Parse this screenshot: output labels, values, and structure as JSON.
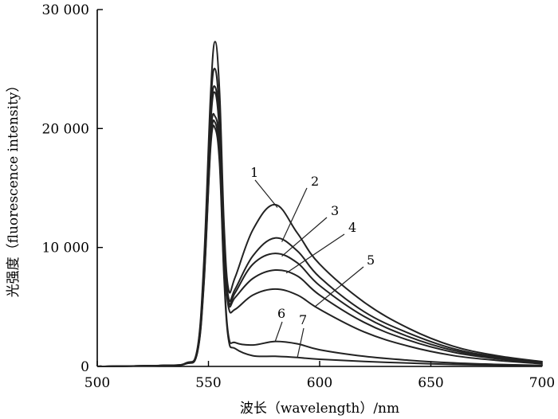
{
  "chart_data": {
    "type": "line",
    "title": "",
    "xlabel": "波长（wavelength）/nm",
    "ylabel": "光强度（fluorescence intensity）",
    "xlim": [
      500,
      700
    ],
    "ylim": [
      0,
      30000
    ],
    "x_ticks": [
      500,
      550,
      600,
      650,
      700
    ],
    "x_tick_labels": [
      "500",
      "550",
      "600",
      "650",
      "700"
    ],
    "y_ticks": [
      0,
      10000,
      20000,
      30000
    ],
    "y_tick_labels": [
      "0",
      "10 000",
      "20 000",
      "30 000"
    ],
    "grid": false,
    "legend": "none",
    "line_color": "#222222",
    "x": [
      500,
      530,
      540,
      545,
      548,
      551,
      553,
      555,
      557,
      559,
      562,
      570,
      580,
      590,
      600,
      620,
      640,
      660,
      680,
      700
    ],
    "series": [
      {
        "name": "1",
        "values": [
          0,
          80,
          300,
          1500,
          9000,
          23000,
          27300,
          23000,
          12000,
          6500,
          7500,
          11500,
          13600,
          11200,
          8600,
          5400,
          3200,
          1700,
          900,
          400
        ]
      },
      {
        "name": "2",
        "values": [
          0,
          80,
          280,
          1400,
          8500,
          22000,
          25000,
          21000,
          11000,
          5800,
          6500,
          9300,
          10800,
          9700,
          7500,
          4600,
          2800,
          1500,
          800,
          350
        ]
      },
      {
        "name": "3",
        "values": [
          0,
          80,
          270,
          1350,
          8200,
          21000,
          23500,
          20000,
          10500,
          5500,
          6200,
          8600,
          9500,
          8700,
          6800,
          4200,
          2500,
          1350,
          720,
          320
        ]
      },
      {
        "name": "4",
        "values": [
          0,
          80,
          260,
          1300,
          8000,
          20500,
          23000,
          19500,
          10000,
          5300,
          5800,
          7400,
          8100,
          7600,
          6000,
          3700,
          2200,
          1200,
          640,
          290
        ]
      },
      {
        "name": "5",
        "values": [
          0,
          80,
          250,
          1250,
          7700,
          19500,
          21000,
          18500,
          9500,
          5000,
          4800,
          6000,
          6500,
          6000,
          4800,
          2900,
          1700,
          920,
          500,
          230
        ]
      },
      {
        "name": "6",
        "values": [
          0,
          80,
          240,
          1200,
          7200,
          18800,
          20500,
          17500,
          8000,
          2600,
          2000,
          1800,
          2100,
          1900,
          1400,
          850,
          520,
          300,
          170,
          90
        ]
      },
      {
        "name": "7",
        "values": [
          0,
          80,
          230,
          1150,
          7000,
          18500,
          20000,
          17000,
          7500,
          2300,
          1500,
          900,
          850,
          750,
          600,
          420,
          280,
          170,
          110,
          60
        ]
      }
    ],
    "annotations": [
      {
        "text": "1",
        "series": "1",
        "x": 581
      },
      {
        "text": "2",
        "series": "2",
        "x": 583
      },
      {
        "text": "3",
        "series": "3",
        "x": 583
      },
      {
        "text": "4",
        "series": "4",
        "x": 585
      },
      {
        "text": "5",
        "series": "5",
        "x": 598
      },
      {
        "text": "6",
        "series": "6",
        "x": 580
      },
      {
        "text": "7",
        "series": "7",
        "x": 590
      }
    ]
  }
}
